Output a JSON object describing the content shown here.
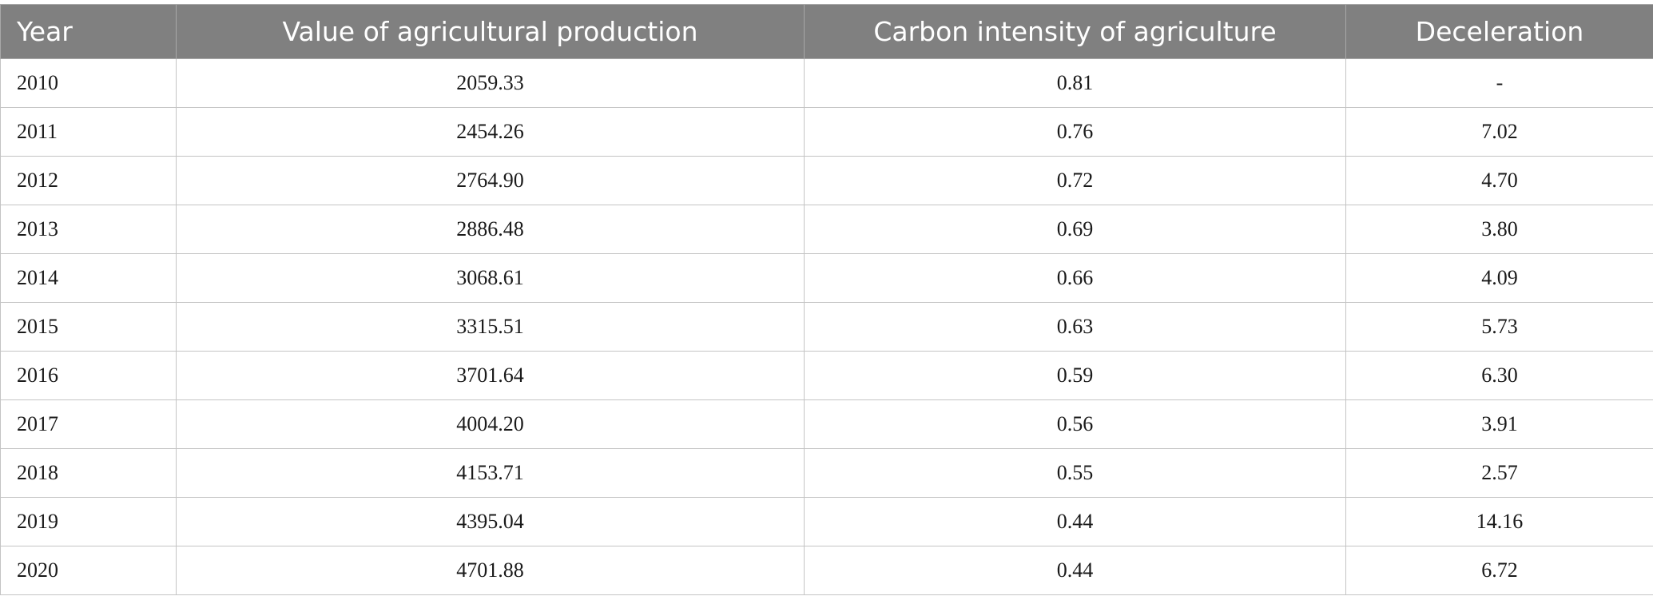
{
  "table": {
    "headers": [
      "Year",
      "Value of agricultural production",
      "Carbon intensity of agriculture",
      "Deceleration"
    ],
    "rows": [
      [
        "2010",
        "2059.33",
        "0.81",
        "-"
      ],
      [
        "2011",
        "2454.26",
        "0.76",
        "7.02"
      ],
      [
        "2012",
        "2764.90",
        "0.72",
        "4.70"
      ],
      [
        "2013",
        "2886.48",
        "0.69",
        "3.80"
      ],
      [
        "2014",
        "3068.61",
        "0.66",
        "4.09"
      ],
      [
        "2015",
        "3315.51",
        "0.63",
        "5.73"
      ],
      [
        "2016",
        "3701.64",
        "0.59",
        "6.30"
      ],
      [
        "2017",
        "4004.20",
        "0.56",
        "3.91"
      ],
      [
        "2018",
        "4153.71",
        "0.55",
        "2.57"
      ],
      [
        "2019",
        "4395.04",
        "0.44",
        "14.16"
      ],
      [
        "2020",
        "4701.88",
        "0.44",
        "6.72"
      ]
    ]
  },
  "colors": {
    "header_background": "#808080",
    "header_text": "#ffffff",
    "grid_line": "#c4c4c4"
  }
}
